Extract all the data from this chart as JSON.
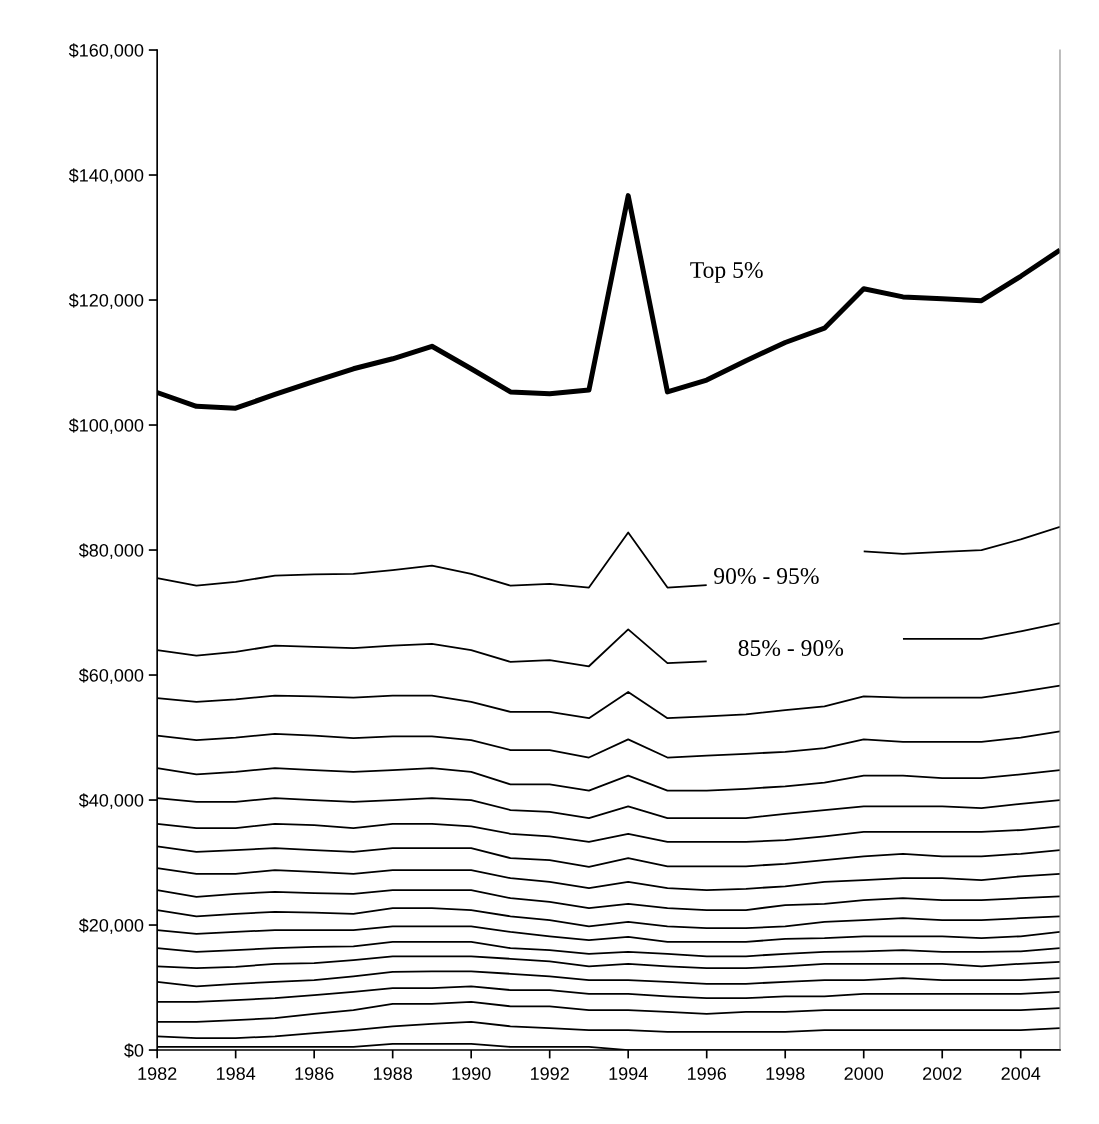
{
  "chart_data": {
    "type": "line",
    "x": [
      1982,
      1983,
      1984,
      1985,
      1986,
      1987,
      1988,
      1989,
      1990,
      1991,
      1992,
      1993,
      1994,
      1995,
      1996,
      1997,
      1998,
      1999,
      2000,
      2001,
      2002,
      2003,
      2004,
      2005
    ],
    "xlim": [
      1982,
      2005
    ],
    "xticks": [
      1982,
      1984,
      1986,
      1988,
      1990,
      1992,
      1994,
      1996,
      1998,
      2000,
      2002,
      2004
    ],
    "ylim": [
      0,
      160000
    ],
    "yticks": [
      {
        "value": 0,
        "label": "$0"
      },
      {
        "value": 20000,
        "label": "$20,000"
      },
      {
        "value": 40000,
        "label": "$40,000"
      },
      {
        "value": 60000,
        "label": "$60,000"
      },
      {
        "value": 80000,
        "label": "$80,000"
      },
      {
        "value": 100000,
        "label": "$100,000"
      },
      {
        "value": 120000,
        "label": "$120,000"
      },
      {
        "value": 140000,
        "label": "$140,000"
      },
      {
        "value": 160000,
        "label": "$160,000"
      }
    ],
    "grid": false,
    "legend": false,
    "marker": "none",
    "line_style": "solid",
    "annotations": [
      "Top 5%",
      "90% - 95%",
      "85% - 90%"
    ],
    "series": [
      {
        "color": "#000000",
        "values": [
          105200,
          103000,
          102700,
          104900,
          107000,
          109000,
          110600,
          112600,
          109000,
          105300,
          105000,
          105600,
          136700,
          105300,
          107200,
          110300,
          113200,
          115500,
          121800,
          120500,
          120200,
          119900,
          123800,
          128000
        ]
      },
      {
        "color": "#000000",
        "values": [
          75500,
          74300,
          74900,
          75900,
          76100,
          76200,
          76800,
          77500,
          76200,
          74300,
          74600,
          74000,
          82800,
          74000,
          74400,
          null,
          null,
          null,
          79800,
          79400,
          79700,
          80000,
          81700,
          83700
        ]
      },
      {
        "color": "#000000",
        "values": [
          64000,
          63100,
          63700,
          64700,
          64500,
          64300,
          64700,
          65000,
          64000,
          62100,
          62400,
          61400,
          67300,
          61900,
          62200,
          null,
          null,
          null,
          null,
          65800,
          65800,
          65800,
          67000,
          68300
        ]
      },
      {
        "color": "#000000",
        "values": [
          56300,
          55700,
          56100,
          56700,
          56600,
          56400,
          56700,
          56700,
          55700,
          54100,
          54100,
          53100,
          57300,
          53100,
          53400,
          53700,
          54400,
          55000,
          56600,
          56400,
          56400,
          56400,
          57300,
          58300
        ]
      },
      {
        "color": "#000000",
        "values": [
          50300,
          49600,
          50000,
          50600,
          50300,
          49900,
          50200,
          50200,
          49600,
          48000,
          48000,
          46800,
          49700,
          46800,
          47100,
          47400,
          47700,
          48300,
          49700,
          49300,
          49300,
          49300,
          50000,
          51000
        ]
      },
      {
        "color": "#000000",
        "values": [
          45100,
          44100,
          44500,
          45100,
          44800,
          44500,
          44800,
          45100,
          44500,
          42500,
          42500,
          41500,
          43900,
          41500,
          41500,
          41800,
          42200,
          42800,
          43900,
          43900,
          43500,
          43500,
          44100,
          44800
        ]
      },
      {
        "color": "#000000",
        "values": [
          40300,
          39700,
          39700,
          40300,
          40000,
          39700,
          40000,
          40300,
          40000,
          38400,
          38100,
          37100,
          39000,
          37100,
          37100,
          37100,
          37800,
          38400,
          39000,
          39000,
          39000,
          38700,
          39400,
          40000
        ]
      },
      {
        "color": "#000000",
        "values": [
          36200,
          35500,
          35500,
          36200,
          36000,
          35500,
          36200,
          36200,
          35800,
          34600,
          34200,
          33300,
          34600,
          33300,
          33300,
          33300,
          33600,
          34200,
          34900,
          34900,
          34900,
          34900,
          35200,
          35800
        ]
      },
      {
        "color": "#000000",
        "values": [
          32600,
          31700,
          32000,
          32300,
          32000,
          31700,
          32300,
          32300,
          32300,
          30700,
          30400,
          29300,
          30700,
          29400,
          29400,
          29400,
          29800,
          30400,
          31000,
          31400,
          31000,
          31000,
          31400,
          32000
        ]
      },
      {
        "color": "#000000",
        "values": [
          29100,
          28200,
          28200,
          28800,
          28500,
          28200,
          28800,
          28800,
          28800,
          27500,
          26900,
          25900,
          26900,
          25900,
          25600,
          25800,
          26200,
          26900,
          27200,
          27500,
          27500,
          27200,
          27800,
          28200
        ]
      },
      {
        "color": "#000000",
        "values": [
          25600,
          24500,
          25000,
          25300,
          25100,
          25000,
          25600,
          25600,
          25600,
          24300,
          23700,
          22700,
          23400,
          22700,
          22400,
          22400,
          23200,
          23400,
          24000,
          24300,
          24000,
          24000,
          24300,
          24600
        ]
      },
      {
        "color": "#000000",
        "values": [
          22400,
          21400,
          21800,
          22100,
          22000,
          21800,
          22700,
          22700,
          22400,
          21400,
          20800,
          19800,
          20500,
          19800,
          19500,
          19500,
          19800,
          20500,
          20800,
          21100,
          20800,
          20800,
          21100,
          21400
        ]
      },
      {
        "color": "#000000",
        "values": [
          19200,
          18600,
          18900,
          19200,
          19200,
          19200,
          19800,
          19800,
          19800,
          18900,
          18200,
          17600,
          18100,
          17300,
          17300,
          17300,
          17800,
          17900,
          18200,
          18200,
          18200,
          17900,
          18200,
          18900
        ]
      },
      {
        "color": "#000000",
        "values": [
          16300,
          15700,
          16000,
          16300,
          16500,
          16600,
          17300,
          17300,
          17300,
          16300,
          16000,
          15400,
          15700,
          15400,
          15000,
          15000,
          15400,
          15700,
          15800,
          16000,
          15700,
          15700,
          15800,
          16300
        ]
      },
      {
        "color": "#000000",
        "values": [
          13400,
          13100,
          13300,
          13800,
          13900,
          14400,
          15000,
          15000,
          15000,
          14600,
          14200,
          13400,
          13800,
          13400,
          13100,
          13100,
          13400,
          13800,
          13800,
          13800,
          13800,
          13400,
          13800,
          14100
        ]
      },
      {
        "color": "#000000",
        "values": [
          10900,
          10200,
          10600,
          10900,
          11200,
          11800,
          12500,
          12600,
          12600,
          12200,
          11800,
          11200,
          11200,
          10900,
          10600,
          10600,
          10900,
          11200,
          11200,
          11500,
          11200,
          11200,
          11200,
          11500
        ]
      },
      {
        "color": "#000000",
        "values": [
          7700,
          7700,
          8000,
          8300,
          8800,
          9300,
          9900,
          9900,
          10200,
          9600,
          9600,
          9000,
          9000,
          8600,
          8300,
          8300,
          8600,
          8600,
          9000,
          9000,
          9000,
          9000,
          9000,
          9300
        ]
      },
      {
        "color": "#000000",
        "values": [
          4500,
          4500,
          4800,
          5100,
          5800,
          6400,
          7400,
          7400,
          7700,
          7000,
          7000,
          6400,
          6400,
          6100,
          5800,
          6100,
          6100,
          6400,
          6400,
          6400,
          6400,
          6400,
          6400,
          6700
        ]
      },
      {
        "color": "#000000",
        "values": [
          2200,
          1900,
          1900,
          2200,
          2700,
          3200,
          3800,
          4200,
          4500,
          3800,
          3500,
          3200,
          3200,
          2900,
          2900,
          2900,
          2900,
          3200,
          3200,
          3200,
          3200,
          3200,
          3200,
          3500
        ]
      },
      {
        "color": "#000000",
        "values": [
          500,
          500,
          500,
          500,
          500,
          500,
          1000,
          1000,
          1000,
          500,
          500,
          500,
          0,
          0,
          0,
          0,
          0,
          0,
          0,
          0,
          0,
          0,
          0,
          0
        ]
      }
    ]
  }
}
